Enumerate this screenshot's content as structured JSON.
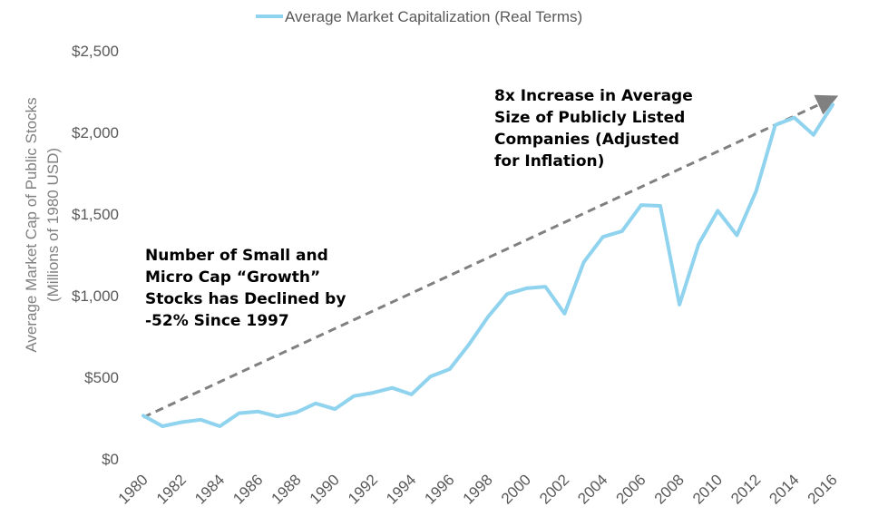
{
  "chart_data": {
    "type": "line",
    "legend": {
      "label": "Average Market Capitalization (Real Terms)",
      "position": "top-center"
    },
    "ylabel": [
      "Average Market Cap of Public Stocks",
      "(Millions of 1980 USD)"
    ],
    "xlabel": "",
    "ylim": [
      0,
      2500
    ],
    "y_ticks": [
      {
        "value": 0,
        "label": "$0"
      },
      {
        "value": 500,
        "label": "$500"
      },
      {
        "value": 1000,
        "label": "$1,000"
      },
      {
        "value": 1500,
        "label": "$1,500"
      },
      {
        "value": 2000,
        "label": "$2,000"
      },
      {
        "value": 2500,
        "label": "$2,500"
      }
    ],
    "xlim": [
      1980,
      2016
    ],
    "x_ticks": [
      1980,
      1982,
      1984,
      1986,
      1988,
      1990,
      1992,
      1994,
      1996,
      1998,
      2000,
      2002,
      2004,
      2006,
      2008,
      2010,
      2012,
      2014,
      2016
    ],
    "grid": false,
    "series": [
      {
        "name": "Average Market Capitalization (Real Terms)",
        "color": "#8fd3ef",
        "x": [
          1980,
          1981,
          1982,
          1983,
          1984,
          1985,
          1986,
          1987,
          1988,
          1989,
          1990,
          1991,
          1992,
          1993,
          1994,
          1995,
          1996,
          1997,
          1998,
          1999,
          2000,
          2001,
          2002,
          2003,
          2004,
          2005,
          2006,
          2007,
          2008,
          2009,
          2010,
          2011,
          2012,
          2013,
          2014,
          2015,
          2016
        ],
        "y": [
          265,
          200,
          225,
          240,
          200,
          280,
          290,
          260,
          285,
          340,
          305,
          385,
          405,
          435,
          395,
          505,
          550,
          700,
          870,
          1010,
          1045,
          1055,
          890,
          1205,
          1360,
          1395,
          1555,
          1550,
          945,
          1315,
          1520,
          1370,
          1640,
          2045,
          2090,
          1985,
          2170
        ]
      }
    ],
    "trend_line": {
      "color": "#808080",
      "style": "dashed",
      "arrow": true,
      "from": {
        "x": 1980,
        "y": 255
      },
      "to": {
        "x": 2016,
        "y": 2215
      }
    },
    "annotations": [
      {
        "lines": [
          "8x Increase in Average",
          "Size of Publicly Listed",
          "Companies (Adjusted",
          "for Inflation)"
        ]
      },
      {
        "lines": [
          "Number of Small and",
          "Micro Cap “Growth”",
          "Stocks has Declined by",
          "-52% Since 1997"
        ]
      }
    ]
  }
}
